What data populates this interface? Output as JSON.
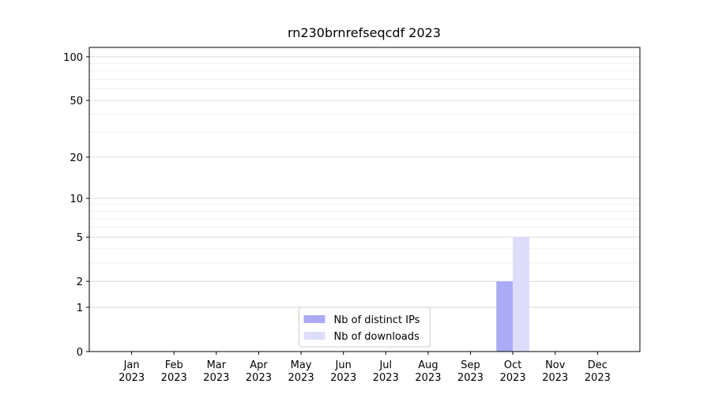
{
  "chart_data": {
    "type": "bar",
    "title": "rn230brnrefseqcdf 2023",
    "categories": [
      "Jan 2023",
      "Feb 2023",
      "Mar 2023",
      "Apr 2023",
      "May 2023",
      "Jun 2023",
      "Jul 2023",
      "Aug 2023",
      "Sep 2023",
      "Oct 2023",
      "Nov 2023",
      "Dec 2023"
    ],
    "series": [
      {
        "name": "Nb of distinct IPs",
        "color": "#aaaaf6",
        "values": [
          0,
          0,
          0,
          0,
          0,
          0,
          0,
          0,
          0,
          2,
          0,
          0
        ]
      },
      {
        "name": "Nb of downloads",
        "color": "#ddddfb",
        "values": [
          0,
          0,
          0,
          0,
          0,
          0,
          0,
          0,
          0,
          5,
          0,
          0
        ]
      }
    ],
    "yscale": "log1p",
    "ylim": [
      0,
      116
    ],
    "yticks": [
      0,
      1,
      2,
      5,
      10,
      20,
      50,
      100
    ],
    "yminorticks": [
      3,
      4,
      6,
      7,
      8,
      9,
      30,
      40,
      60,
      70,
      80,
      90
    ],
    "grid": true,
    "legend": "lower center"
  }
}
